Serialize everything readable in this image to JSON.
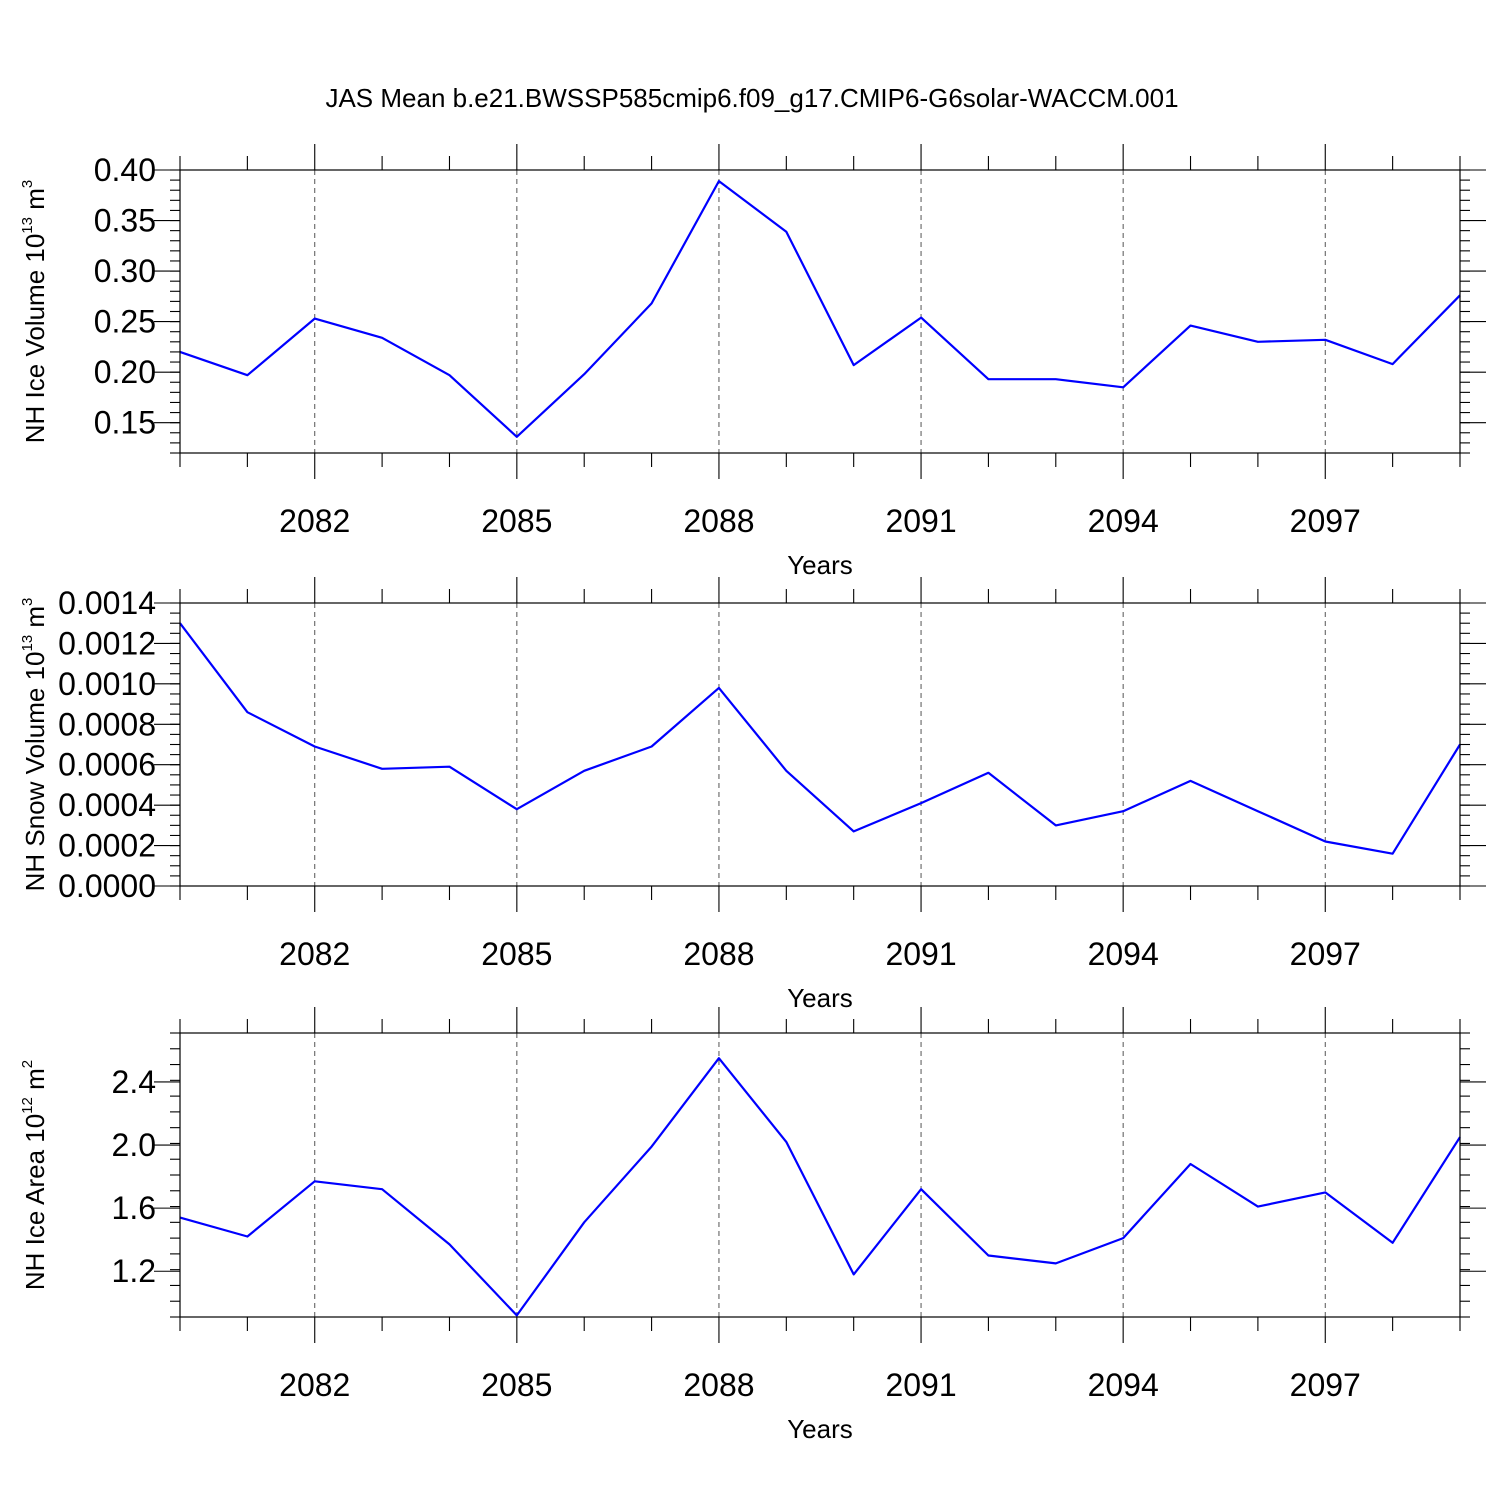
{
  "title": "JAS Mean b.e21.BWSSP585cmip6.f09_g17.CMIP6-G6solar-WACCM.001",
  "chart_data": [
    {
      "type": "line",
      "xlabel": "Years",
      "ylabel": {
        "text": "NH Ice Volume 10",
        "exp": "13",
        "unit": " m",
        "unit_exp": "3"
      },
      "xlim": [
        2080,
        2099
      ],
      "ylim": [
        0.12,
        0.4
      ],
      "x_ticks": [
        2082,
        2085,
        2088,
        2091,
        2094,
        2097
      ],
      "x_tick_labels": [
        "2082",
        "2085",
        "2088",
        "2091",
        "2094",
        "2097"
      ],
      "y_ticks": [
        0.15,
        0.2,
        0.25,
        0.3,
        0.35,
        0.4
      ],
      "y_tick_labels": [
        "0.15",
        "0.20",
        "0.25",
        "0.30",
        "0.35",
        "0.40"
      ],
      "y_minor_step": 0.01,
      "grid_x": true,
      "color": "#0000ff",
      "x": [
        2080,
        2081,
        2082,
        2083,
        2084,
        2085,
        2086,
        2087,
        2088,
        2089,
        2090,
        2091,
        2092,
        2093,
        2094,
        2095,
        2096,
        2097,
        2098,
        2099
      ],
      "values": [
        0.22,
        0.197,
        0.253,
        0.234,
        0.197,
        0.136,
        0.198,
        0.268,
        0.389,
        0.339,
        0.207,
        0.254,
        0.193,
        0.193,
        0.185,
        0.246,
        0.23,
        0.232,
        0.208,
        0.276
      ]
    },
    {
      "type": "line",
      "xlabel": "Years",
      "ylabel": {
        "text": "NH Snow Volume 10",
        "exp": "13",
        "unit": " m",
        "unit_exp": "3"
      },
      "xlim": [
        2080,
        2099
      ],
      "ylim": [
        0.0,
        0.0014
      ],
      "x_ticks": [
        2082,
        2085,
        2088,
        2091,
        2094,
        2097
      ],
      "x_tick_labels": [
        "2082",
        "2085",
        "2088",
        "2091",
        "2094",
        "2097"
      ],
      "y_ticks": [
        0.0,
        0.0002,
        0.0004,
        0.0006,
        0.0008,
        0.001,
        0.0012,
        0.0014
      ],
      "y_tick_labels": [
        "0.0000",
        "0.0002",
        "0.0004",
        "0.0006",
        "0.0008",
        "0.0010",
        "0.0012",
        "0.0014"
      ],
      "y_minor_step": 5e-05,
      "grid_x": true,
      "color": "#0000ff",
      "x": [
        2080,
        2081,
        2082,
        2083,
        2084,
        2085,
        2086,
        2087,
        2088,
        2089,
        2090,
        2091,
        2092,
        2093,
        2094,
        2095,
        2096,
        2097,
        2098,
        2099
      ],
      "values": [
        0.0013,
        0.00086,
        0.00069,
        0.00058,
        0.00059,
        0.00038,
        0.00057,
        0.00069,
        0.00098,
        0.00057,
        0.00027,
        0.00041,
        0.00056,
        0.0003,
        0.00037,
        0.00052,
        0.00037,
        0.00022,
        0.00016,
        0.0007
      ]
    },
    {
      "type": "line",
      "xlabel": "Years",
      "ylabel": {
        "text": "NH Ice Area 10",
        "exp": "12",
        "unit": " m",
        "unit_exp": "2"
      },
      "xlim": [
        2080,
        2099
      ],
      "ylim": [
        0.91,
        2.71
      ],
      "x_ticks": [
        2082,
        2085,
        2088,
        2091,
        2094,
        2097
      ],
      "x_tick_labels": [
        "2082",
        "2085",
        "2088",
        "2091",
        "2094",
        "2097"
      ],
      "y_ticks": [
        1.2,
        1.6,
        2.0,
        2.4
      ],
      "y_tick_labels": [
        "1.2",
        "1.6",
        "2.0",
        "2.4"
      ],
      "y_minor_step": 0.1,
      "grid_x": true,
      "color": "#0000ff",
      "x": [
        2080,
        2081,
        2082,
        2083,
        2084,
        2085,
        2086,
        2087,
        2088,
        2089,
        2090,
        2091,
        2092,
        2093,
        2094,
        2095,
        2096,
        2097,
        2098,
        2099
      ],
      "values": [
        1.54,
        1.42,
        1.77,
        1.72,
        1.37,
        0.92,
        1.51,
        1.99,
        2.55,
        2.02,
        1.18,
        1.72,
        1.3,
        1.25,
        1.41,
        1.88,
        1.61,
        1.7,
        1.38,
        2.05
      ]
    }
  ]
}
